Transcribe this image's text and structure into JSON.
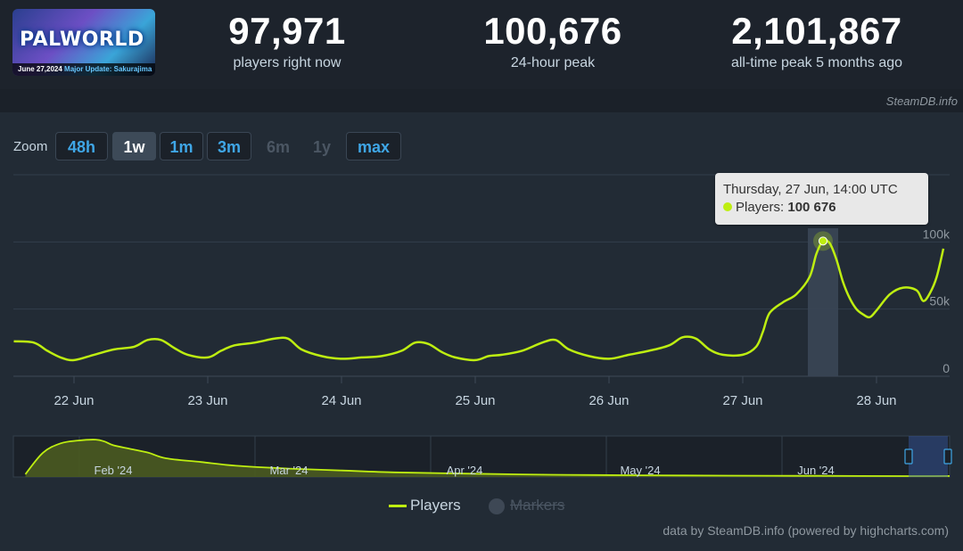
{
  "game": {
    "logo_text": "PALWORLD",
    "update_date": "June 27,2024",
    "update_label": "Major Update: Sakurajima"
  },
  "stats": [
    {
      "value": "97,971",
      "label": "players right now"
    },
    {
      "value": "100,676",
      "label": "24-hour peak"
    },
    {
      "value": "2,101,867",
      "label": "all-time peak 5 months ago"
    }
  ],
  "credit_top": "SteamDB.info",
  "zoom": {
    "label": "Zoom",
    "options": [
      {
        "label": "48h",
        "state": "enabled"
      },
      {
        "label": "1w",
        "state": "active"
      },
      {
        "label": "1m",
        "state": "enabled"
      },
      {
        "label": "3m",
        "state": "enabled"
      },
      {
        "label": "6m",
        "state": "disabled"
      },
      {
        "label": "1y",
        "state": "disabled"
      },
      {
        "label": "max",
        "state": "enabled"
      }
    ]
  },
  "tooltip": {
    "date": "Thursday, 27 Jun, 14:00 UTC",
    "series_label": "Players:",
    "value": "100 676"
  },
  "legend": {
    "players": "Players",
    "markers": "Markers"
  },
  "footer_credit": "data by SteamDB.info (powered by highcharts.com)",
  "colors": {
    "players_line": "#beee11",
    "background": "#1b2129",
    "panel": "#222b35",
    "accent_blue": "#3fa6e6"
  },
  "chart_data": [
    {
      "type": "line",
      "title": "",
      "x_tick_labels": [
        "22 Jun",
        "23 Jun",
        "24 Jun",
        "25 Jun",
        "26 Jun",
        "27 Jun",
        "28 Jun"
      ],
      "y_tick_labels": [
        "0",
        "50k",
        "100k"
      ],
      "ylim": [
        0,
        150000
      ],
      "grid": true,
      "series": [
        {
          "name": "Players",
          "x_days_from_22jun": [
            -0.45,
            -0.3,
            -0.2,
            -0.1,
            0.0,
            0.15,
            0.3,
            0.45,
            0.55,
            0.65,
            0.75,
            0.85,
            1.0,
            1.1,
            1.2,
            1.35,
            1.5,
            1.6,
            1.7,
            1.85,
            2.0,
            2.15,
            2.3,
            2.45,
            2.55,
            2.65,
            2.75,
            2.85,
            3.0,
            3.1,
            3.2,
            3.35,
            3.5,
            3.6,
            3.7,
            3.85,
            4.0,
            4.15,
            4.3,
            4.45,
            4.55,
            4.65,
            4.75,
            4.85,
            5.0,
            5.1,
            5.15,
            5.2,
            5.3,
            5.4,
            5.5,
            5.55,
            5.6,
            5.65,
            5.7,
            5.75,
            5.8,
            5.85,
            5.9,
            5.95,
            6.0,
            6.1,
            6.2,
            6.3,
            6.35,
            6.4,
            6.45,
            6.5
          ],
          "values": [
            26000,
            25000,
            19000,
            14000,
            12000,
            16000,
            20000,
            22000,
            27000,
            27000,
            21000,
            16000,
            14000,
            19000,
            23000,
            25000,
            28000,
            28000,
            20000,
            15000,
            13000,
            14000,
            15000,
            19000,
            25000,
            24000,
            18000,
            14000,
            12000,
            15000,
            16000,
            19000,
            25000,
            27000,
            20000,
            15000,
            13000,
            16000,
            19000,
            23000,
            29000,
            28000,
            20000,
            16000,
            16000,
            22000,
            33000,
            47000,
            55000,
            61000,
            74000,
            91000,
            100676,
            99000,
            87000,
            70000,
            58000,
            50000,
            46000,
            44000,
            49000,
            61000,
            66000,
            64000,
            56000,
            62000,
            74000,
            95000
          ]
        }
      ],
      "tooltip_point": {
        "x_label": "Thursday, 27 Jun, 14:00 UTC",
        "value": 100676
      }
    },
    {
      "type": "area",
      "title": "",
      "x_tick_labels": [
        "Feb '24",
        "Mar '24",
        "Apr '24",
        "May '24",
        "Jun '24"
      ],
      "series": [
        {
          "name": "Players",
          "x_months_from_feb1": [
            -0.5,
            -0.4,
            -0.3,
            -0.2,
            -0.1,
            -0.05,
            0.0,
            0.1,
            0.2,
            0.3,
            0.5,
            0.7,
            1.0,
            1.3,
            1.6,
            2.0,
            2.5,
            3.0,
            3.5,
            4.0,
            4.5,
            5.0,
            5.3
          ],
          "values": [
            150000,
            1300000,
            1800000,
            1950000,
            2000000,
            1900000,
            1700000,
            1500000,
            1300000,
            1000000,
            800000,
            600000,
            450000,
            350000,
            250000,
            180000,
            120000,
            90000,
            70000,
            60000,
            50000,
            60000,
            90000
          ]
        }
      ],
      "navigator_selection": "1w"
    }
  ]
}
